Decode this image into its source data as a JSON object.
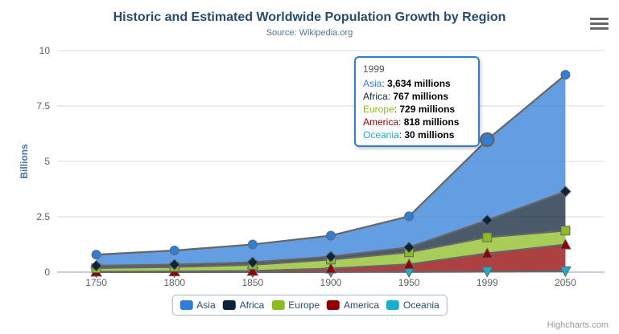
{
  "header": {
    "title": "Historic and Estimated Worldwide Population Growth by Region",
    "subtitle": "Source: Wikipedia.org"
  },
  "credits": {
    "label": "Highcharts.com"
  },
  "tooltip": {
    "header": "1999",
    "rows": [
      {
        "name": "Asia",
        "value": "3,634 millions"
      },
      {
        "name": "Africa",
        "value": "767 millions"
      },
      {
        "name": "Europe",
        "value": "729 millions"
      },
      {
        "name": "America",
        "value": "818 millions"
      },
      {
        "name": "Oceania",
        "value": "30 millions"
      }
    ]
  },
  "colors": {
    "title": "#274b6d",
    "subtitle": "#4d759e",
    "axis_label": "#606060",
    "y_axis_title": "#4572a7",
    "gridline": "#d8d8d8",
    "x_axis_line": "#c0d0e0",
    "series_outline": "#666666",
    "tooltip_border": "#2f7ed8"
  },
  "chart_data": {
    "type": "area",
    "stacking": "normal",
    "title": "Historic and Estimated Worldwide Population Growth by Region",
    "subtitle": "Source: Wikipedia.org",
    "categories": [
      "1750",
      "1800",
      "1850",
      "1900",
      "1950",
      "1999",
      "2050"
    ],
    "xlabel": "",
    "ylabel": "Billions",
    "ylim": [
      0,
      10
    ],
    "yticks": [
      0,
      2.5,
      5,
      7.5,
      10
    ],
    "value_unit": "millions",
    "grid": "horizontal-only",
    "legend_position": "bottom",
    "series": [
      {
        "name": "Asia",
        "color": "#2f7ed8",
        "marker": "circle",
        "values": [
          502,
          635,
          809,
          947,
          1402,
          3634,
          5268
        ]
      },
      {
        "name": "Africa",
        "color": "#0d233a",
        "marker": "diamond",
        "values": [
          106,
          107,
          111,
          133,
          221,
          767,
          1766
        ]
      },
      {
        "name": "Europe",
        "color": "#8bbc21",
        "marker": "square",
        "values": [
          163,
          203,
          276,
          408,
          547,
          729,
          628
        ]
      },
      {
        "name": "America",
        "color": "#910000",
        "marker": "triangle",
        "values": [
          18,
          31,
          54,
          156,
          339,
          818,
          1201
        ]
      },
      {
        "name": "Oceania",
        "color": "#1aadce",
        "marker": "triangle-down",
        "values": [
          2,
          2,
          2,
          6,
          13,
          30,
          46
        ]
      }
    ],
    "stack_order_bottom_to_top": [
      "Oceania",
      "America",
      "Europe",
      "Africa",
      "Asia"
    ],
    "hover": {
      "series": "Asia",
      "category": "1999"
    }
  }
}
